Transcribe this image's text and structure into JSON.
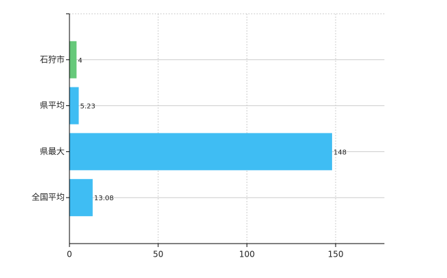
{
  "chart_data": {
    "type": "bar",
    "orientation": "horizontal",
    "categories": [
      "石狩市",
      "県平均",
      "県最大",
      "全国平均"
    ],
    "values": [
      4,
      5.23,
      148,
      13.08
    ],
    "colors": [
      "#66c97a",
      "#3fbdf3",
      "#3fbdf3",
      "#3fbdf3"
    ],
    "xlim": [
      0,
      177.5
    ],
    "xticks": [
      0,
      50,
      100,
      150
    ],
    "grid": true
  }
}
